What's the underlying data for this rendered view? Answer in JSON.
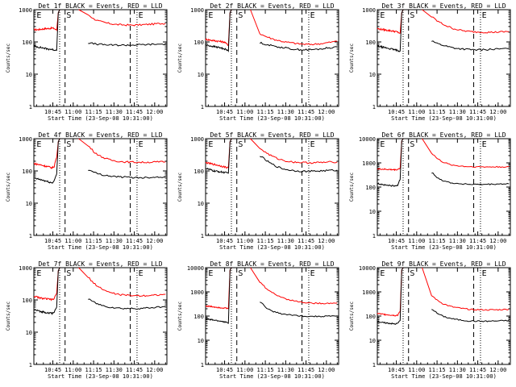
{
  "chart_data": [
    {
      "type": "line",
      "title": "Det 1f BLACK = Events, RED = LLD",
      "xlabel": "Start Time (23-Sep-08 10:31:00)",
      "ylabel": "Counts/sec",
      "yscale": "log",
      "ylim": [
        1,
        1000
      ],
      "y_ticks": [
        "1",
        "10",
        "100",
        "1000"
      ],
      "x_ticks": [
        "10:45",
        "11:00",
        "11:15",
        "11:30",
        "11:45",
        "12:00"
      ],
      "markers": [
        "E",
        "S",
        "E"
      ],
      "series": [
        {
          "color": "#ff0000",
          "pre": [
            240,
            240,
            240,
            245,
            250,
            255,
            260,
            260,
            265,
            270,
            260,
            230
          ],
          "flare": true,
          "post": [
            700,
            520,
            440,
            400,
            370,
            350,
            340,
            335,
            332,
            335,
            340,
            350,
            360,
            370,
            375
          ]
        },
        {
          "color": "#000000",
          "pre": [
            75,
            72,
            70,
            68,
            66,
            64,
            62,
            60,
            60,
            58,
            57,
            55
          ],
          "flare": true,
          "post": [
            95,
            88,
            84,
            82,
            80,
            80,
            79,
            80,
            80,
            81,
            82,
            83,
            84,
            85,
            86
          ]
        }
      ]
    },
    {
      "type": "line",
      "title": "Det 2f BLACK = Events, RED = LLD",
      "xlabel": "Start Time (23-Sep-08 10:31:00)",
      "ylabel": "Counts/sec",
      "yscale": "log",
      "ylim": [
        1,
        1000
      ],
      "y_ticks": [
        "1",
        "10",
        "100",
        "1000"
      ],
      "x_ticks": [
        "10:45",
        "11:00",
        "11:15",
        "11:30",
        "11:45",
        "12:00"
      ],
      "markers": [
        "E",
        "S",
        "E"
      ],
      "series": [
        {
          "color": "#ff0000",
          "pre": [
            120,
            118,
            115,
            112,
            110,
            108,
            106,
            104,
            102,
            100,
            90,
            80
          ],
          "flare": true,
          "post": [
            180,
            150,
            130,
            115,
            105,
            98,
            93,
            88,
            85,
            84,
            85,
            88,
            92,
            98,
            105
          ]
        },
        {
          "color": "#000000",
          "pre": [
            80,
            78,
            76,
            74,
            72,
            70,
            68,
            66,
            64,
            62,
            58,
            52
          ],
          "flare": true,
          "post": [
            95,
            85,
            78,
            72,
            68,
            64,
            60,
            58,
            57,
            57,
            58,
            60,
            63,
            66,
            70
          ]
        }
      ]
    },
    {
      "type": "line",
      "title": "Det 3f BLACK = Events, RED = LLD",
      "xlabel": "Start Time (23-Sep-08 10:31:00)",
      "ylabel": "Counts/sec",
      "yscale": "log",
      "ylim": [
        1,
        1000
      ],
      "y_ticks": [
        "1",
        "10",
        "100",
        "1000"
      ],
      "x_ticks": [
        "10:45",
        "11:00",
        "11:15",
        "11:30",
        "11:45",
        "12:00"
      ],
      "markers": [
        "E",
        "S",
        "E"
      ],
      "series": [
        {
          "color": "#ff0000",
          "pre": [
            260,
            250,
            245,
            240,
            235,
            230,
            225,
            220,
            215,
            210,
            200,
            185
          ],
          "flare": true,
          "post": [
            600,
            450,
            360,
            300,
            260,
            235,
            220,
            210,
            205,
            202,
            200,
            200,
            202,
            205,
            210
          ]
        },
        {
          "color": "#000000",
          "pre": [
            75,
            72,
            70,
            68,
            66,
            64,
            62,
            60,
            58,
            56,
            54,
            52
          ],
          "flare": true,
          "post": [
            110,
            90,
            80,
            72,
            66,
            62,
            60,
            58,
            57,
            57,
            58,
            59,
            60,
            61,
            62
          ]
        }
      ]
    },
    {
      "type": "line",
      "title": "Det 4f BLACK = Events, RED = LLD",
      "xlabel": "Start Time (23-Sep-08 10:31:00)",
      "ylabel": "Counts/sec",
      "yscale": "log",
      "ylim": [
        1,
        1000
      ],
      "y_ticks": [
        "1",
        "10",
        "100",
        "1000"
      ],
      "x_ticks": [
        "10:45",
        "11:00",
        "11:15",
        "11:30",
        "11:45",
        "12:00"
      ],
      "markers": [
        "E",
        "S",
        "E"
      ],
      "series": [
        {
          "color": "#ff0000",
          "pre": [
            170,
            165,
            160,
            155,
            150,
            145,
            140,
            135,
            130,
            125,
            140,
            260
          ],
          "flare": true,
          "post": [
            600,
            400,
            300,
            250,
            220,
            205,
            195,
            190,
            188,
            186,
            185,
            186,
            188,
            190,
            192
          ]
        },
        {
          "color": "#000000",
          "pre": [
            60,
            58,
            56,
            54,
            52,
            50,
            48,
            46,
            44,
            42,
            50,
            80
          ],
          "flare": true,
          "post": [
            110,
            90,
            80,
            74,
            70,
            67,
            65,
            64,
            63,
            62,
            62,
            63,
            64,
            65,
            66
          ]
        }
      ]
    },
    {
      "type": "line",
      "title": "Det 5f BLACK = Events, RED = LLD",
      "xlabel": "Start Time (23-Sep-08 10:31:00)",
      "ylabel": "Counts/sec",
      "yscale": "log",
      "ylim": [
        1,
        1000
      ],
      "y_ticks": [
        "1",
        "10",
        "100",
        "1000"
      ],
      "x_ticks": [
        "10:45",
        "11:00",
        "11:15",
        "11:30",
        "11:45",
        "12:00"
      ],
      "markers": [
        "E",
        "S",
        "E"
      ],
      "series": [
        {
          "color": "#ff0000",
          "pre": [
            180,
            175,
            170,
            165,
            160,
            155,
            150,
            145,
            140,
            135,
            130,
            125
          ],
          "flare": true,
          "post": [
            500,
            380,
            300,
            250,
            220,
            200,
            190,
            185,
            182,
            180,
            180,
            182,
            185,
            188,
            190
          ]
        },
        {
          "color": "#000000",
          "pre": [
            120,
            115,
            110,
            105,
            100,
            98,
            96,
            94,
            92,
            90,
            88,
            85
          ],
          "flare": true,
          "post": [
            300,
            220,
            170,
            140,
            120,
            110,
            104,
            100,
            98,
            97,
            98,
            100,
            102,
            104,
            106
          ]
        }
      ]
    },
    {
      "type": "line",
      "title": "Det 6f BLACK = Events, RED = LLD",
      "xlabel": "Start Time (23-Sep-08 10:31:00)",
      "ylabel": "Counts/sec",
      "yscale": "log",
      "ylim": [
        1,
        10000
      ],
      "y_ticks": [
        "1",
        "10",
        "100",
        "1000",
        "10000"
      ],
      "x_ticks": [
        "10:45",
        "11:00",
        "11:15",
        "11:30",
        "11:45",
        "12:00"
      ],
      "markers": [
        "E",
        "S",
        "E"
      ],
      "series": [
        {
          "color": "#ff0000",
          "pre": [
            560,
            555,
            550,
            545,
            540,
            535,
            530,
            525,
            520,
            520,
            540,
            600
          ],
          "flare": true,
          "post": [
            2500,
            1500,
            1100,
            900,
            800,
            750,
            720,
            700,
            690,
            685,
            680,
            680,
            682,
            685,
            690
          ]
        },
        {
          "color": "#000000",
          "pre": [
            140,
            135,
            130,
            125,
            120,
            118,
            116,
            114,
            112,
            110,
            120,
            200
          ],
          "flare": true,
          "post": [
            400,
            250,
            190,
            160,
            145,
            138,
            134,
            130,
            128,
            127,
            128,
            130,
            132,
            134,
            136
          ]
        }
      ]
    },
    {
      "type": "line",
      "title": "Det 7f BLACK = Events, RED = LLD",
      "xlabel": "Start Time (23-Sep-08 10:31:00)",
      "ylabel": "Counts/sec",
      "yscale": "log",
      "ylim": [
        1,
        1000
      ],
      "y_ticks": [
        "1",
        "10",
        "100",
        "1000"
      ],
      "x_ticks": [
        "10:45",
        "11:00",
        "11:15",
        "11:30",
        "11:45",
        "12:00"
      ],
      "markers": [
        "E",
        "S",
        "E"
      ],
      "series": [
        {
          "color": "#ff0000",
          "pre": [
            130,
            125,
            120,
            115,
            112,
            110,
            108,
            106,
            104,
            102,
            110,
            160
          ],
          "flare": true,
          "post": [
            500,
            330,
            250,
            200,
            170,
            155,
            145,
            140,
            138,
            136,
            136,
            138,
            140,
            145,
            150
          ]
        },
        {
          "color": "#000000",
          "pre": [
            50,
            48,
            46,
            44,
            43,
            42,
            41,
            40,
            39,
            38,
            42,
            60
          ],
          "flare": true,
          "post": [
            110,
            85,
            72,
            64,
            60,
            57,
            55,
            54,
            54,
            54,
            55,
            56,
            58,
            60,
            62
          ]
        }
      ]
    },
    {
      "type": "line",
      "title": "Det 8f BLACK = Events, RED = LLD",
      "xlabel": "Start Time (23-Sep-08 10:31:00)",
      "ylabel": "Counts/sec",
      "yscale": "log",
      "ylim": [
        1,
        10000
      ],
      "y_ticks": [
        "1",
        "10",
        "100",
        "1000",
        "10000"
      ],
      "x_ticks": [
        "10:45",
        "11:00",
        "11:15",
        "11:30",
        "11:45",
        "12:00"
      ],
      "markers": [
        "E",
        "S",
        "E"
      ],
      "series": [
        {
          "color": "#ff0000",
          "pre": [
            260,
            255,
            250,
            245,
            240,
            235,
            230,
            225,
            220,
            215,
            210,
            200
          ],
          "flare": true,
          "post": [
            2500,
            1500,
            1000,
            750,
            600,
            500,
            440,
            400,
            370,
            350,
            340,
            335,
            335,
            340,
            350
          ]
        },
        {
          "color": "#000000",
          "pre": [
            80,
            75,
            72,
            70,
            68,
            66,
            64,
            62,
            60,
            58,
            55,
            50
          ],
          "flare": true,
          "post": [
            400,
            230,
            170,
            140,
            125,
            115,
            108,
            104,
            100,
            98,
            97,
            97,
            98,
            100,
            102
          ]
        }
      ]
    },
    {
      "type": "line",
      "title": "Det 9f BLACK = Events, RED = LLD",
      "xlabel": "Start Time (23-Sep-08 10:31:00)",
      "ylabel": "Counts/sec",
      "yscale": "log",
      "ylim": [
        1,
        10000
      ],
      "y_ticks": [
        "1",
        "10",
        "100",
        "1000",
        "10000"
      ],
      "x_ticks": [
        "10:45",
        "11:00",
        "11:15",
        "11:30",
        "11:45",
        "12:00"
      ],
      "markers": [
        "E",
        "S",
        "E"
      ],
      "series": [
        {
          "color": "#ff0000",
          "pre": [
            130,
            125,
            120,
            118,
            116,
            114,
            112,
            110,
            108,
            106,
            110,
            150
          ],
          "flare": true,
          "post": [
            700,
            450,
            330,
            270,
            235,
            215,
            200,
            190,
            185,
            182,
            180,
            180,
            182,
            185,
            190
          ]
        },
        {
          "color": "#000000",
          "pre": [
            60,
            57,
            55,
            53,
            52,
            51,
            50,
            49,
            48,
            47,
            50,
            65
          ],
          "flare": true,
          "post": [
            200,
            130,
            100,
            85,
            76,
            70,
            66,
            63,
            62,
            61,
            61,
            62,
            63,
            64,
            66
          ]
        }
      ]
    }
  ]
}
